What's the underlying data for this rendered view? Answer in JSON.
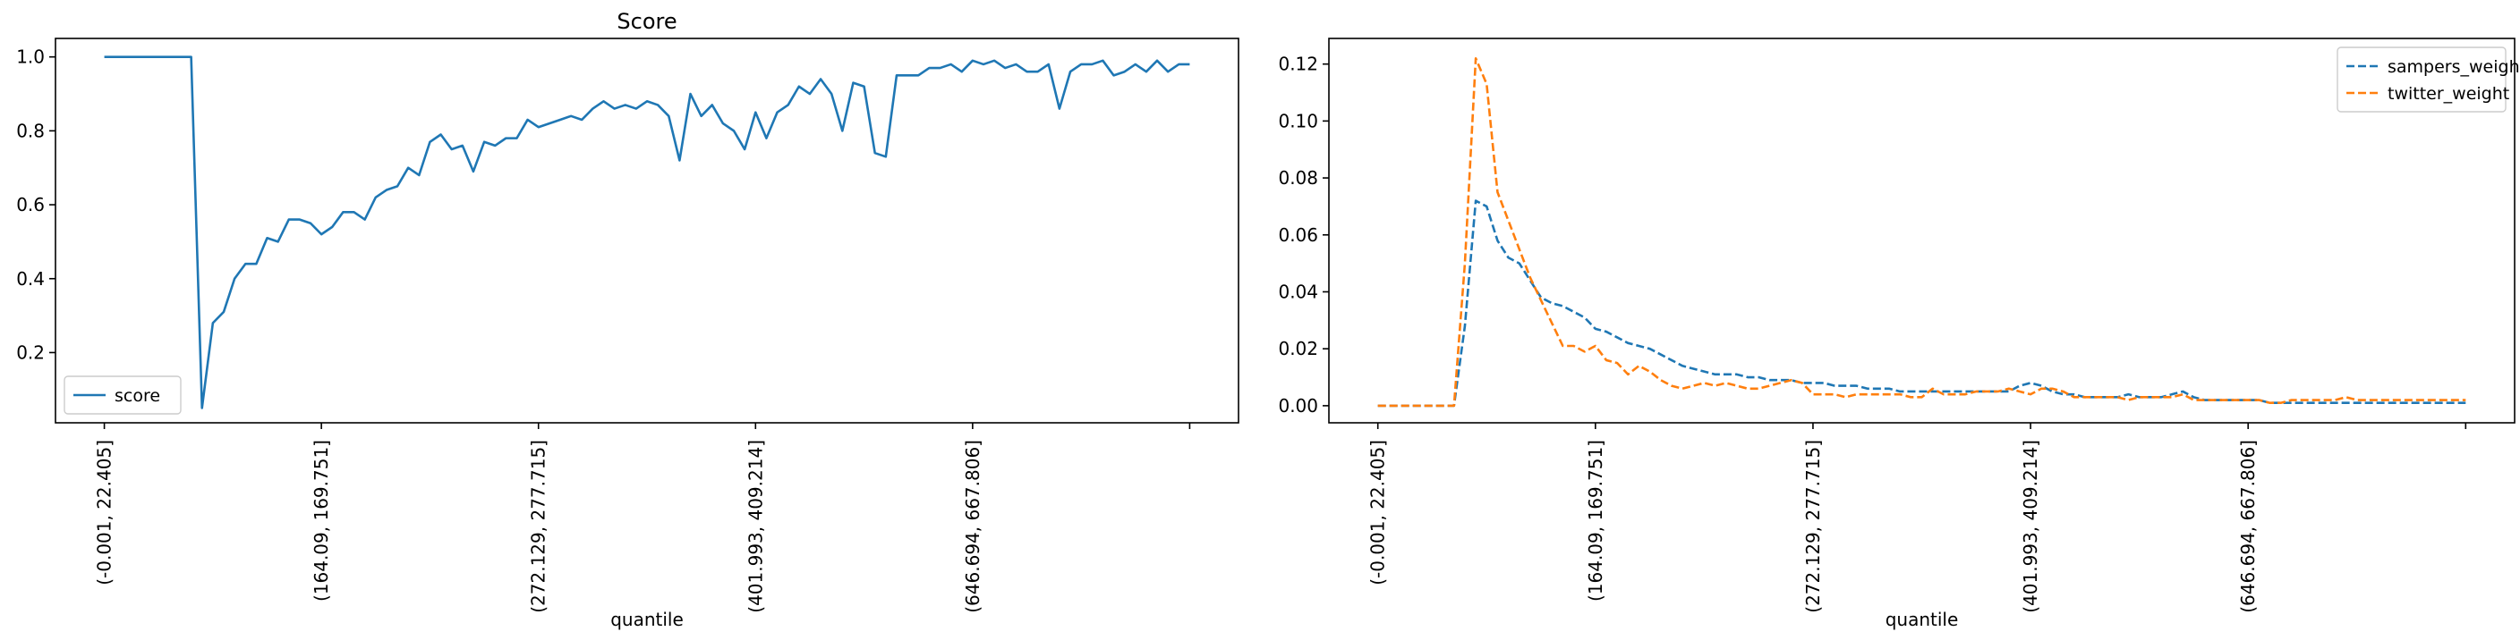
{
  "colors": {
    "score": "#1f77b4",
    "sampers_weight": "#1f77b4",
    "twitter_weight": "#ff7f0e",
    "axes": "#000000",
    "legend_border": "#cccccc"
  },
  "chart_data": [
    {
      "type": "line",
      "title": "Score",
      "xlabel": "quantile",
      "ylabel": "",
      "x_tick_labels": [
        "(-0.001, 22.405]",
        "(164.09, 169.751]",
        "(272.129, 277.715]",
        "(401.993, 409.214]",
        "(646.694, 667.806]",
        ""
      ],
      "x_tick_positions": [
        0,
        20,
        40,
        60,
        80,
        100
      ],
      "xlim": [
        -4.5,
        104.5
      ],
      "ylim": [
        0.01,
        1.05
      ],
      "y_ticks": [
        0.2,
        0.4,
        0.6,
        0.8,
        1.0
      ],
      "y_tick_labels": [
        "0.2",
        "0.4",
        "0.6",
        "0.8",
        "1.0"
      ],
      "legend_position": "lower-left",
      "grid": false,
      "series": [
        {
          "name": "score",
          "style": "solid",
          "x": [
            0,
            1,
            2,
            3,
            4,
            5,
            6,
            7,
            8,
            9,
            10,
            11,
            12,
            13,
            14,
            15,
            16,
            17,
            18,
            19,
            20,
            21,
            22,
            23,
            24,
            25,
            26,
            27,
            28,
            29,
            30,
            31,
            32,
            33,
            34,
            35,
            36,
            37,
            38,
            39,
            40,
            41,
            42,
            43,
            44,
            45,
            46,
            47,
            48,
            49,
            50,
            51,
            52,
            53,
            54,
            55,
            56,
            57,
            58,
            59,
            60,
            61,
            62,
            63,
            64,
            65,
            66,
            67,
            68,
            69,
            70,
            71,
            72,
            73,
            74,
            75,
            76,
            77,
            78,
            79,
            80,
            81,
            82,
            83,
            84,
            85,
            86,
            87,
            88,
            89,
            90,
            91,
            92,
            93,
            94,
            95,
            96,
            97,
            98,
            99,
            100
          ],
          "values": [
            1.0,
            1.0,
            1.0,
            1.0,
            1.0,
            1.0,
            1.0,
            1.0,
            1.0,
            0.05,
            0.28,
            0.31,
            0.4,
            0.44,
            0.44,
            0.51,
            0.5,
            0.56,
            0.56,
            0.55,
            0.52,
            0.54,
            0.58,
            0.58,
            0.56,
            0.62,
            0.64,
            0.65,
            0.7,
            0.68,
            0.77,
            0.79,
            0.75,
            0.76,
            0.69,
            0.77,
            0.76,
            0.78,
            0.78,
            0.83,
            0.81,
            0.82,
            0.83,
            0.84,
            0.83,
            0.86,
            0.88,
            0.86,
            0.87,
            0.86,
            0.88,
            0.87,
            0.84,
            0.72,
            0.9,
            0.84,
            0.87,
            0.82,
            0.8,
            0.75,
            0.85,
            0.78,
            0.85,
            0.87,
            0.92,
            0.9,
            0.94,
            0.9,
            0.8,
            0.93,
            0.92,
            0.74,
            0.73,
            0.95,
            0.95,
            0.95,
            0.97,
            0.97,
            0.98,
            0.96,
            0.99,
            0.98,
            0.99,
            0.97,
            0.98,
            0.96,
            0.96,
            0.98,
            0.86,
            0.96,
            0.98,
            0.98,
            0.99,
            0.95,
            0.96,
            0.98,
            0.96,
            0.99,
            0.96,
            0.98,
            0.98
          ]
        }
      ]
    },
    {
      "type": "line",
      "title": "",
      "xlabel": "quantile",
      "ylabel": "",
      "x_tick_labels": [
        "(-0.001, 22.405]",
        "(164.09, 169.751]",
        "(272.129, 277.715]",
        "(401.993, 409.214]",
        "(646.694, 667.806]",
        ""
      ],
      "x_tick_positions": [
        0,
        20,
        40,
        60,
        80,
        100
      ],
      "xlim": [
        -4.5,
        104.5
      ],
      "ylim": [
        -0.006,
        0.129
      ],
      "y_ticks": [
        0.0,
        0.02,
        0.04,
        0.06,
        0.08,
        0.1,
        0.12
      ],
      "y_tick_labels": [
        "0.00",
        "0.02",
        "0.04",
        "0.06",
        "0.08",
        "0.10",
        "0.12"
      ],
      "legend_position": "upper-right",
      "grid": false,
      "series": [
        {
          "name": "sampers_weight",
          "style": "dashed",
          "x": [
            0,
            1,
            2,
            3,
            4,
            5,
            6,
            7,
            8,
            9,
            10,
            11,
            12,
            13,
            14,
            15,
            16,
            17,
            18,
            19,
            20,
            21,
            22,
            23,
            24,
            25,
            26,
            27,
            28,
            29,
            30,
            31,
            32,
            33,
            34,
            35,
            36,
            37,
            38,
            39,
            40,
            41,
            42,
            43,
            44,
            45,
            46,
            47,
            48,
            49,
            50,
            51,
            52,
            53,
            54,
            55,
            56,
            57,
            58,
            59,
            60,
            61,
            62,
            63,
            64,
            65,
            66,
            67,
            68,
            69,
            70,
            71,
            72,
            73,
            74,
            75,
            76,
            77,
            78,
            79,
            80,
            81,
            82,
            83,
            84,
            85,
            86,
            87,
            88,
            89,
            90,
            91,
            92,
            93,
            94,
            95,
            96,
            97,
            98,
            99,
            100
          ],
          "values": [
            0,
            0,
            0,
            0,
            0,
            0,
            0,
            0,
            0.028,
            0.072,
            0.07,
            0.058,
            0.052,
            0.05,
            0.044,
            0.038,
            0.036,
            0.035,
            0.033,
            0.031,
            0.027,
            0.026,
            0.024,
            0.022,
            0.021,
            0.02,
            0.018,
            0.016,
            0.014,
            0.013,
            0.012,
            0.011,
            0.011,
            0.011,
            0.01,
            0.01,
            0.009,
            0.009,
            0.009,
            0.008,
            0.008,
            0.008,
            0.007,
            0.007,
            0.007,
            0.006,
            0.006,
            0.006,
            0.005,
            0.005,
            0.005,
            0.005,
            0.005,
            0.005,
            0.005,
            0.005,
            0.005,
            0.005,
            0.005,
            0.007,
            0.008,
            0.007,
            0.005,
            0.004,
            0.004,
            0.003,
            0.003,
            0.003,
            0.003,
            0.004,
            0.003,
            0.003,
            0.003,
            0.004,
            0.005,
            0.003,
            0.002,
            0.002,
            0.002,
            0.002,
            0.002,
            0.002,
            0.001,
            0.001,
            0.001,
            0.001,
            0.001,
            0.001,
            0.001,
            0.001,
            0.001,
            0.001,
            0.001,
            0.001,
            0.001,
            0.001,
            0.001,
            0.001,
            0.001,
            0.001,
            0.001
          ]
        },
        {
          "name": "twitter_weight",
          "style": "dashed",
          "x": [
            0,
            1,
            2,
            3,
            4,
            5,
            6,
            7,
            8,
            9,
            10,
            11,
            12,
            13,
            14,
            15,
            16,
            17,
            18,
            19,
            20,
            21,
            22,
            23,
            24,
            25,
            26,
            27,
            28,
            29,
            30,
            31,
            32,
            33,
            34,
            35,
            36,
            37,
            38,
            39,
            40,
            41,
            42,
            43,
            44,
            45,
            46,
            47,
            48,
            49,
            50,
            51,
            52,
            53,
            54,
            55,
            56,
            57,
            58,
            59,
            60,
            61,
            62,
            63,
            64,
            65,
            66,
            67,
            68,
            69,
            70,
            71,
            72,
            73,
            74,
            75,
            76,
            77,
            78,
            79,
            80,
            81,
            82,
            83,
            84,
            85,
            86,
            87,
            88,
            89,
            90,
            91,
            92,
            93,
            94,
            95,
            96,
            97,
            98,
            99,
            100
          ],
          "values": [
            0,
            0,
            0,
            0,
            0,
            0,
            0,
            0,
            0.05,
            0.122,
            0.113,
            0.075,
            0.065,
            0.055,
            0.045,
            0.037,
            0.029,
            0.021,
            0.021,
            0.019,
            0.021,
            0.016,
            0.015,
            0.011,
            0.014,
            0.012,
            0.009,
            0.007,
            0.006,
            0.007,
            0.008,
            0.007,
            0.008,
            0.007,
            0.006,
            0.006,
            0.007,
            0.008,
            0.009,
            0.008,
            0.004,
            0.004,
            0.004,
            0.003,
            0.004,
            0.004,
            0.004,
            0.004,
            0.004,
            0.003,
            0.003,
            0.006,
            0.004,
            0.004,
            0.004,
            0.005,
            0.005,
            0.005,
            0.006,
            0.005,
            0.004,
            0.006,
            0.006,
            0.005,
            0.003,
            0.003,
            0.003,
            0.003,
            0.003,
            0.002,
            0.003,
            0.003,
            0.003,
            0.003,
            0.004,
            0.002,
            0.002,
            0.002,
            0.002,
            0.002,
            0.002,
            0.002,
            0.001,
            0.001,
            0.002,
            0.002,
            0.002,
            0.002,
            0.002,
            0.003,
            0.002,
            0.002,
            0.002,
            0.002,
            0.002,
            0.002,
            0.002,
            0.002,
            0.002,
            0.002,
            0.002
          ]
        }
      ]
    }
  ]
}
